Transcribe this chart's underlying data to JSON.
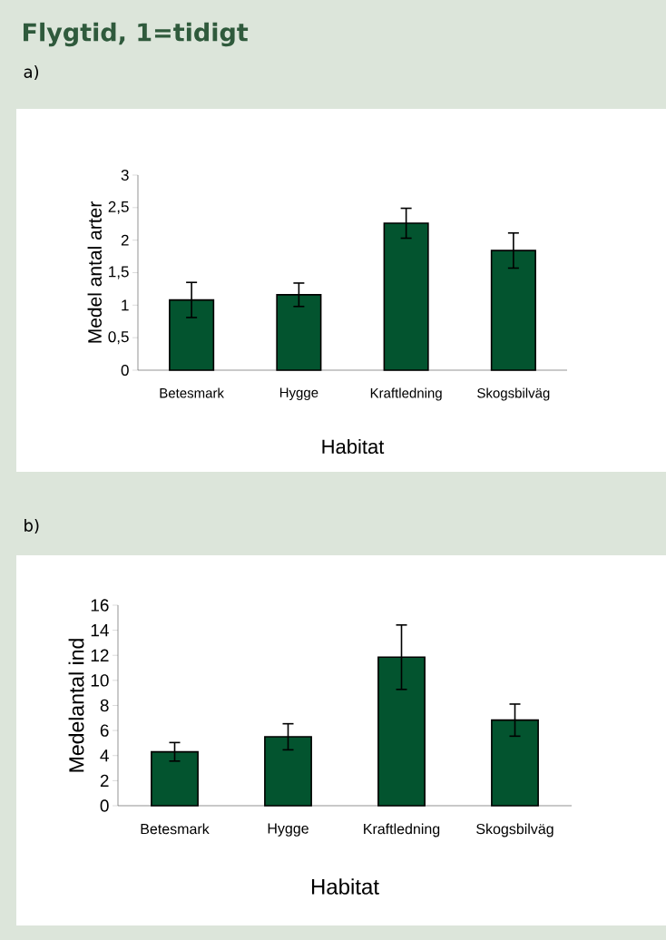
{
  "chart_data": [
    {
      "type": "bar",
      "title": "Flygtid, 1=tidigt",
      "subtitle": "a)",
      "categories": [
        "Betesmark",
        "Hygge",
        "Kraftledning",
        "Skogsbilväg"
      ],
      "values": [
        1.08,
        1.16,
        2.26,
        1.84
      ],
      "errors": [
        0.27,
        0.18,
        0.23,
        0.27
      ],
      "color": "#03542f",
      "ylim": [
        0,
        3
      ],
      "yticks": [
        0,
        {
          "value": 0.5,
          "label": "0,5"
        },
        1,
        {
          "value": 1.5,
          "label": "1,5"
        },
        2,
        {
          "value": 2.5,
          "label": "2,5"
        },
        3
      ],
      "xlabel": "Habitat",
      "ylabel": "Medel antal arter"
    },
    {
      "type": "bar",
      "subtitle": "b)",
      "categories": [
        "Betesmark",
        "Hygge",
        "Kraftledning",
        "Skogsbilväg"
      ],
      "values": [
        4.3,
        5.5,
        11.85,
        6.83
      ],
      "errors": [
        0.74,
        1.04,
        2.57,
        1.28
      ],
      "color": "#03542f",
      "ylim": [
        0,
        16
      ],
      "yticks": [
        0,
        2,
        4,
        6,
        8,
        10,
        12,
        14,
        16
      ],
      "xlabel": "Habitat",
      "ylabel": "Medelantal ind"
    }
  ]
}
